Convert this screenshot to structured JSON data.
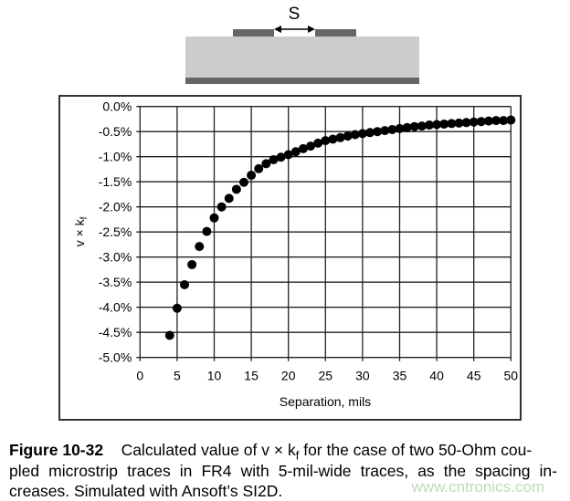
{
  "diagram": {
    "spacing_label": "S",
    "colors": {
      "substrate": "#cccccc",
      "trace": "#666666",
      "ground": "#666666"
    }
  },
  "chart_data": {
    "type": "scatter",
    "xlabel": "Separation, mils",
    "ylabel": "v × k",
    "ylabel_subscript": "f",
    "xlim": [
      0,
      50
    ],
    "ylim": [
      -5.0,
      0.0
    ],
    "x_ticks": [
      "0",
      "5",
      "10",
      "15",
      "20",
      "25",
      "30",
      "35",
      "40",
      "45",
      "50"
    ],
    "y_ticks": [
      "0.0%",
      "-0.5%",
      "-1.0%",
      "-1.5%",
      "-2.0%",
      "-2.5%",
      "-3.0%",
      "-3.5%",
      "-4.0%",
      "-4.5%",
      "-5.0%"
    ],
    "grid": true,
    "marker_color": "#000000",
    "x": [
      4,
      5,
      6,
      7,
      8,
      9,
      10,
      11,
      12,
      13,
      14,
      15,
      16,
      17,
      18,
      19,
      20,
      21,
      22,
      23,
      24,
      25,
      26,
      27,
      28,
      29,
      30,
      31,
      32,
      33,
      34,
      35,
      36,
      37,
      38,
      39,
      40,
      41,
      42,
      43,
      44,
      45,
      46,
      47,
      48,
      49,
      50
    ],
    "y": [
      -4.56,
      -4.02,
      -3.55,
      -3.15,
      -2.79,
      -2.49,
      -2.22,
      -2.0,
      -1.83,
      -1.65,
      -1.51,
      -1.37,
      -1.24,
      -1.14,
      -1.06,
      -1.01,
      -0.96,
      -0.9,
      -0.84,
      -0.79,
      -0.73,
      -0.68,
      -0.65,
      -0.62,
      -0.59,
      -0.56,
      -0.54,
      -0.52,
      -0.5,
      -0.48,
      -0.46,
      -0.44,
      -0.42,
      -0.4,
      -0.39,
      -0.37,
      -0.36,
      -0.35,
      -0.34,
      -0.33,
      -0.32,
      -0.31,
      -0.3,
      -0.29,
      -0.28,
      -0.28,
      -0.27
    ]
  },
  "caption": {
    "figure_label": "Figure 10-32",
    "line1_a": "Calculated value of v × k",
    "line1_sub": "f",
    "line1_b": " for the case of two 50-Ohm cou-",
    "line2": "pled microstrip traces in FR4 with 5-mil-wide traces, as the spacing in-",
    "line3": "creases. Simulated with Ansoft’s SI2D."
  },
  "watermark": "www.cntronics.com"
}
